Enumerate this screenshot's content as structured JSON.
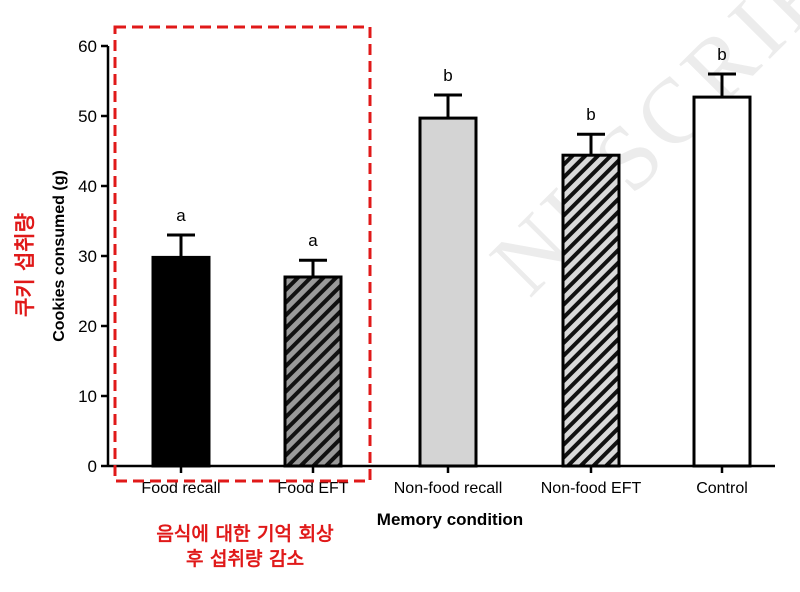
{
  "chart_data": {
    "type": "bar",
    "categories": [
      "Food recall",
      "Food EFT",
      "Non-food recall",
      "Non-food EFT",
      "Control"
    ],
    "values": [
      29.8,
      27.0,
      49.7,
      44.4,
      52.7
    ],
    "errors": [
      3.2,
      2.4,
      3.3,
      3.0,
      3.3
    ],
    "significance": [
      "a",
      "a",
      "b",
      "b",
      "b"
    ],
    "fills": [
      "solid-black",
      "hatched-gray",
      "solid-lightgray",
      "hatched-light",
      "solid-white"
    ],
    "xlabel": "Memory condition",
    "ylabel": "Cookies consumed  (g)",
    "ylim": [
      0,
      60
    ],
    "yticks": [
      "0",
      "10",
      "20",
      "30",
      "40",
      "50",
      "60"
    ],
    "grid": false
  },
  "annotations": {
    "left_label": "쿠키 섭취량",
    "bottom_label_line1": "음식에 대한 기억 회상",
    "bottom_label_line2": "후 섭취량 감소",
    "highlight_color": "#e01919"
  },
  "watermark": "NUSCRIPT"
}
